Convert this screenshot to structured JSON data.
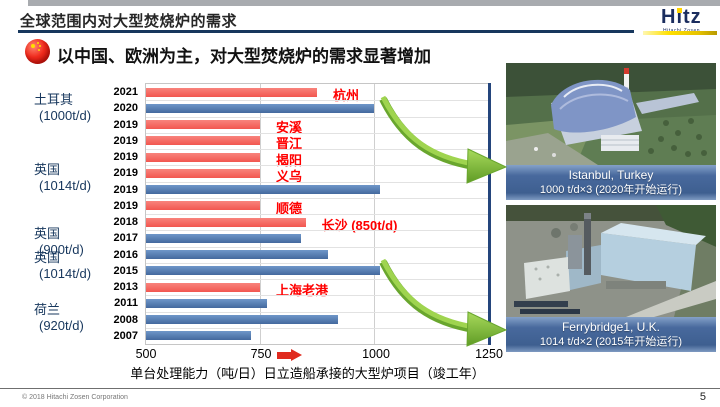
{
  "header": {
    "title": "全球范围内对大型焚烧炉的需求",
    "logo": {
      "text": "Hitz",
      "subtext": "Hitachi Zosen"
    }
  },
  "bullet": {
    "flag_icon": "china-flag",
    "text": "以中国、欧洲为主，对大型焚烧炉的需求显著增加"
  },
  "chart_data": {
    "type": "bar",
    "orientation": "horizontal",
    "title": "",
    "xlabel": "单台处理能力（吨/日）日立造船承接的大型炉项目（竣工年）",
    "ylabel": "",
    "xlim": [
      500,
      1250
    ],
    "xticks": [
      500,
      750,
      1000,
      1250
    ],
    "grid": true,
    "colors": {
      "red": "#f4665f",
      "blue": "#4e81bd"
    },
    "bars": [
      {
        "year": "2021",
        "value": 875,
        "color": "red",
        "label": "杭州"
      },
      {
        "year": "2020",
        "value": 1000,
        "color": "blue",
        "label": ""
      },
      {
        "year": "2019",
        "value": 750,
        "color": "red",
        "label": "安溪"
      },
      {
        "year": "2019",
        "value": 750,
        "color": "red",
        "label": "晋江"
      },
      {
        "year": "2019",
        "value": 750,
        "color": "red",
        "label": "揭阳"
      },
      {
        "year": "2019",
        "value": 750,
        "color": "red",
        "label": "义乌"
      },
      {
        "year": "2019",
        "value": 1014,
        "color": "blue",
        "label": ""
      },
      {
        "year": "2019",
        "value": 750,
        "color": "red",
        "label": "顺德"
      },
      {
        "year": "2018",
        "value": 850,
        "color": "red",
        "label": "长沙 (850t/d)"
      },
      {
        "year": "2017",
        "value": 840,
        "color": "blue",
        "label": ""
      },
      {
        "year": "2016",
        "value": 900,
        "color": "blue",
        "label": ""
      },
      {
        "year": "2015",
        "value": 1014,
        "color": "blue",
        "label": ""
      },
      {
        "year": "2013",
        "value": 750,
        "color": "red",
        "label": "上海老港"
      },
      {
        "year": "2011",
        "value": 765,
        "color": "blue",
        "label": ""
      },
      {
        "year": "2008",
        "value": 920,
        "color": "blue",
        "label": ""
      },
      {
        "year": "2007",
        "value": 730,
        "color": "blue",
        "label": ""
      }
    ],
    "group_labels": [
      {
        "region": "土耳其",
        "capacity": "(1000t/d)"
      },
      {
        "region": "英国",
        "capacity": "(1014t/d)"
      },
      {
        "region": "英国",
        "capacity": "(900t/d)"
      },
      {
        "region": "英国",
        "capacity": "(1014t/d)"
      },
      {
        "region": "荷兰",
        "capacity": "(920t/d)"
      }
    ]
  },
  "photos": [
    {
      "caption_line1": "Istanbul, Turkey",
      "caption_line2": "1000 t/d×3 (2020年开始运行)"
    },
    {
      "caption_line1": "Ferrybridge1, U.K.",
      "caption_line2": "1014 t/d×2 (2015年开始运行)"
    }
  ],
  "footer": {
    "copyright": "© 2018 Hitachi Zosen Corporation",
    "page_number": "5"
  }
}
